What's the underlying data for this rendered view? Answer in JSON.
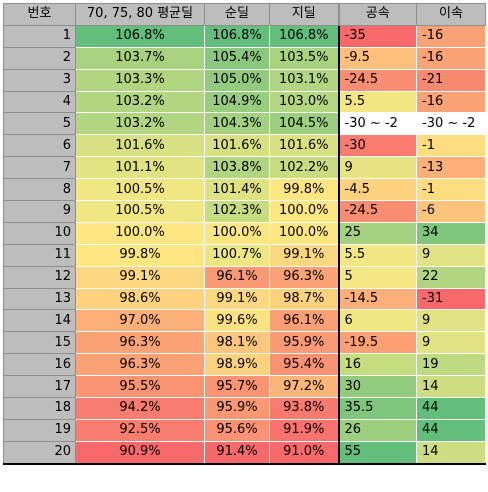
{
  "headers": [
    "번호",
    "70, 75, 80 평균딜",
    "순딜",
    "지딜",
    "공속",
    "이속"
  ],
  "rows": [
    {
      "n": "1",
      "avg": "106.8%",
      "sun": "106.8%",
      "ji": "106.8%",
      "gong": "-35",
      "isok": "-16",
      "c": [
        "#63be7b",
        "#63be7b",
        "#63be7b",
        "#f8696b",
        "#fba276"
      ]
    },
    {
      "n": "2",
      "avg": "103.7%",
      "sun": "105.4%",
      "ji": "103.5%",
      "gong": "-9.5",
      "isok": "-16",
      "c": [
        "#a9d27f",
        "#8ac97d",
        "#a9d27f",
        "#fdc07c",
        "#fba276"
      ]
    },
    {
      "n": "3",
      "avg": "103.3%",
      "sun": "105.0%",
      "ji": "103.1%",
      "gong": "-24.5",
      "isok": "-21",
      "c": [
        "#b1d580",
        "#93cb7e",
        "#b1d580",
        "#fa8e72",
        "#f98871"
      ]
    },
    {
      "n": "4",
      "avg": "103.2%",
      "sun": "104.9%",
      "ji": "103.0%",
      "gong": "5.5",
      "isok": "-16",
      "c": [
        "#b1d580",
        "#96cd7e",
        "#b4d680",
        "#f3e784",
        "#fba276"
      ]
    },
    {
      "n": "5",
      "avg": "103.2%",
      "sun": "104.3%",
      "ji": "104.5%",
      "gong": "-30 ~ -2",
      "isok": "-30 ~ -2",
      "c": [
        "#b1d580",
        "#a3d17f",
        "#9ccf7f",
        "#ffffff",
        "#ffffff"
      ]
    },
    {
      "n": "6",
      "avg": "101.6%",
      "sun": "101.6%",
      "ji": "101.6%",
      "gong": "-30",
      "isok": "-1",
      "c": [
        "#d7e082",
        "#d7e082",
        "#d7e082",
        "#f97a6e",
        "#fedd81"
      ]
    },
    {
      "n": "7",
      "avg": "101.1%",
      "sun": "103.8%",
      "ji": "102.2%",
      "gong": "9",
      "isok": "-13",
      "c": [
        "#e2e383",
        "#b1d580",
        "#c8dc81",
        "#e8e483",
        "#fcb079"
      ]
    },
    {
      "n": "8",
      "avg": "100.5%",
      "sun": "101.4%",
      "ji": "99.8%",
      "gong": "-4.5",
      "isok": "-1",
      "c": [
        "#f0e784",
        "#dee283",
        "#fee683",
        "#fed27f",
        "#fedd81"
      ]
    },
    {
      "n": "9",
      "avg": "100.5%",
      "sun": "102.3%",
      "ji": "100.0%",
      "gong": "-24.5",
      "isok": "-6",
      "c": [
        "#f0e784",
        "#c6dc81",
        "#fee783",
        "#fa8e72",
        "#fdc47c"
      ]
    },
    {
      "n": "10",
      "avg": "100.0%",
      "sun": "100.0%",
      "ji": "100.0%",
      "gong": "25",
      "isok": "34",
      "c": [
        "#fee783",
        "#fee783",
        "#fee783",
        "#a3d17f",
        "#7fc67d"
      ]
    },
    {
      "n": "11",
      "avg": "99.8%",
      "sun": "100.7%",
      "ji": "99.1%",
      "gong": "5.5",
      "isok": "9",
      "c": [
        "#fee683",
        "#ecE683",
        "#fed881",
        "#f3e784",
        "#e0e283"
      ]
    },
    {
      "n": "12",
      "avg": "99.1%",
      "sun": "96.1%",
      "ji": "96.3%",
      "gong": "5",
      "isok": "22",
      "c": [
        "#fed881",
        "#fa9a74",
        "#fba276",
        "#f5e784",
        "#b1d580"
      ]
    },
    {
      "n": "13",
      "avg": "98.6%",
      "sun": "99.1%",
      "ji": "98.7%",
      "gong": "-14.5",
      "isok": "-31",
      "c": [
        "#fed27f",
        "#fed881",
        "#fdd27f",
        "#fcb079",
        "#f8696b"
      ]
    },
    {
      "n": "14",
      "avg": "97.0%",
      "sun": "99.6%",
      "ji": "96.1%",
      "gong": "6",
      "isok": "9",
      "c": [
        "#fcb079",
        "#fee282",
        "#fb9f75",
        "#f1e684",
        "#e0e283"
      ]
    },
    {
      "n": "15",
      "avg": "96.3%",
      "sun": "98.1%",
      "ji": "95.9%",
      "gong": "-19.5",
      "isok": "9",
      "c": [
        "#fba276",
        "#fdc67d",
        "#fb9a74",
        "#fb9f75",
        "#e0e283"
      ]
    },
    {
      "n": "16",
      "avg": "96.3%",
      "sun": "98.9%",
      "ji": "95.4%",
      "gong": "16",
      "isok": "19",
      "c": [
        "#fba276",
        "#fdd27f",
        "#fa9273",
        "#c6dc81",
        "#bdd981"
      ]
    },
    {
      "n": "17",
      "avg": "95.5%",
      "sun": "95.7%",
      "ji": "97.2%",
      "gong": "30",
      "isok": "14",
      "c": [
        "#fa9473",
        "#fa9473",
        "#fcb67a",
        "#93cb7e",
        "#cfdd82"
      ]
    },
    {
      "n": "18",
      "avg": "94.2%",
      "sun": "95.9%",
      "ji": "93.8%",
      "gong": "35.5",
      "isok": "44",
      "c": [
        "#f97d6f",
        "#fa9873",
        "#f97a6e",
        "#7fc67d",
        "#63be7b"
      ]
    },
    {
      "n": "19",
      "avg": "92.5%",
      "sun": "95.6%",
      "ji": "91.9%",
      "gong": "26",
      "isok": "44",
      "c": [
        "#f97d6f",
        "#fa9273",
        "#f8736d",
        "#9ccf7f",
        "#63be7b"
      ]
    },
    {
      "n": "20",
      "avg": "90.9%",
      "sun": "91.4%",
      "ji": "91.0%",
      "gong": "55",
      "isok": "14",
      "c": [
        "#f8696b",
        "#f8696b",
        "#f8696b",
        "#63be7b",
        "#cfdd82"
      ]
    }
  ]
}
